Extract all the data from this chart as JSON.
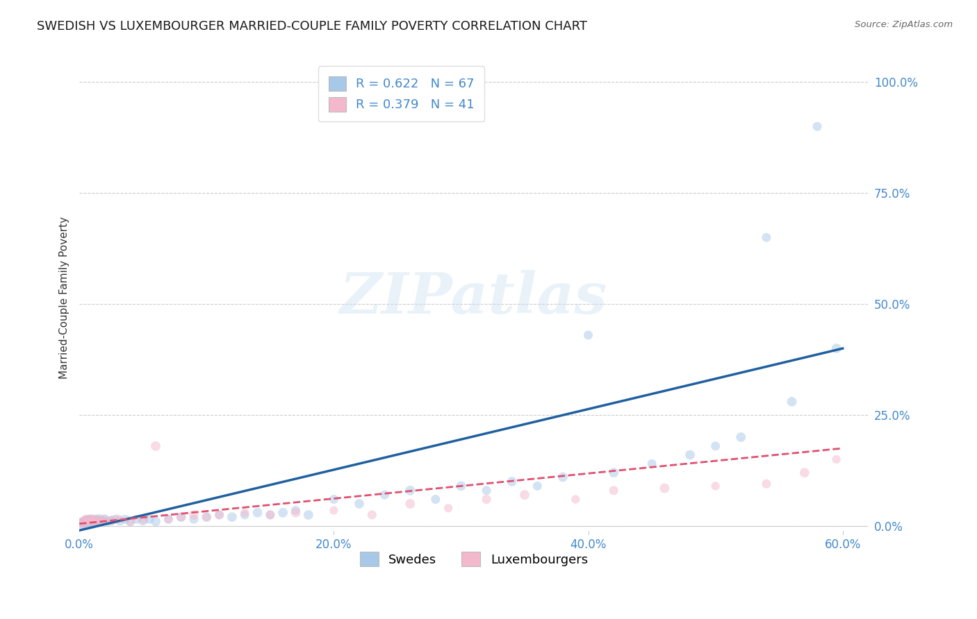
{
  "title": "SWEDISH VS LUXEMBOURGER MARRIED-COUPLE FAMILY POVERTY CORRELATION CHART",
  "source": "Source: ZipAtlas.com",
  "ylabel": "Married-Couple Family Poverty",
  "legend_label1": "Swedes",
  "legend_label2": "Luxembourgers",
  "r1": 0.622,
  "n1": 67,
  "r2": 0.379,
  "n2": 41,
  "color_blue": "#a8c8e8",
  "color_pink": "#f4b8cc",
  "color_blue_line": "#2060a0",
  "color_pink_line": "#e05070",
  "xlim": [
    0.0,
    0.62
  ],
  "ylim": [
    -0.02,
    1.05
  ],
  "x_ticks": [
    0.0,
    0.2,
    0.4,
    0.6
  ],
  "y_ticks": [
    0.0,
    0.25,
    0.5,
    0.75,
    1.0
  ],
  "tick_color": "#4488cc",
  "watermark_text": "ZIPatlas",
  "title_fontsize": 13,
  "tick_fontsize": 12,
  "legend_fontsize": 13,
  "swedes_x": [
    0.002,
    0.003,
    0.003,
    0.004,
    0.005,
    0.005,
    0.006,
    0.006,
    0.007,
    0.007,
    0.008,
    0.008,
    0.009,
    0.009,
    0.01,
    0.01,
    0.011,
    0.012,
    0.013,
    0.014,
    0.015,
    0.016,
    0.017,
    0.018,
    0.02,
    0.022,
    0.025,
    0.028,
    0.032,
    0.036,
    0.04,
    0.045,
    0.05,
    0.055,
    0.06,
    0.07,
    0.08,
    0.09,
    0.1,
    0.11,
    0.12,
    0.13,
    0.14,
    0.15,
    0.16,
    0.17,
    0.18,
    0.2,
    0.22,
    0.24,
    0.26,
    0.28,
    0.3,
    0.32,
    0.34,
    0.36,
    0.38,
    0.4,
    0.42,
    0.45,
    0.48,
    0.5,
    0.52,
    0.54,
    0.56,
    0.58,
    0.595
  ],
  "swedes_y": [
    0.005,
    0.008,
    0.01,
    0.006,
    0.012,
    0.008,
    0.01,
    0.015,
    0.008,
    0.012,
    0.01,
    0.015,
    0.008,
    0.012,
    0.01,
    0.015,
    0.012,
    0.01,
    0.015,
    0.012,
    0.008,
    0.015,
    0.01,
    0.012,
    0.015,
    0.01,
    0.012,
    0.015,
    0.012,
    0.015,
    0.01,
    0.015,
    0.012,
    0.015,
    0.01,
    0.015,
    0.02,
    0.015,
    0.02,
    0.025,
    0.02,
    0.025,
    0.03,
    0.025,
    0.03,
    0.035,
    0.025,
    0.06,
    0.05,
    0.07,
    0.08,
    0.06,
    0.09,
    0.08,
    0.1,
    0.09,
    0.11,
    0.43,
    0.12,
    0.14,
    0.16,
    0.18,
    0.2,
    0.65,
    0.28,
    0.9,
    0.4
  ],
  "swedes_size": [
    120,
    100,
    90,
    80,
    100,
    90,
    80,
    70,
    90,
    80,
    100,
    80,
    90,
    70,
    80,
    90,
    80,
    100,
    80,
    90,
    80,
    100,
    90,
    80,
    90,
    80,
    90,
    80,
    90,
    80,
    90,
    80,
    90,
    80,
    90,
    80,
    90,
    80,
    90,
    80,
    90,
    80,
    90,
    80,
    90,
    80,
    90,
    80,
    90,
    80,
    90,
    80,
    90,
    80,
    90,
    80,
    90,
    80,
    90,
    80,
    90,
    80,
    90,
    80,
    90,
    80,
    90
  ],
  "lux_x": [
    0.002,
    0.003,
    0.004,
    0.005,
    0.006,
    0.007,
    0.008,
    0.009,
    0.01,
    0.011,
    0.012,
    0.014,
    0.016,
    0.018,
    0.02,
    0.025,
    0.03,
    0.04,
    0.05,
    0.06,
    0.07,
    0.08,
    0.09,
    0.1,
    0.11,
    0.13,
    0.15,
    0.17,
    0.2,
    0.23,
    0.26,
    0.29,
    0.32,
    0.35,
    0.39,
    0.42,
    0.46,
    0.5,
    0.54,
    0.57,
    0.595
  ],
  "lux_y": [
    0.005,
    0.01,
    0.008,
    0.015,
    0.01,
    0.012,
    0.015,
    0.01,
    0.012,
    0.015,
    0.01,
    0.015,
    0.012,
    0.01,
    0.015,
    0.012,
    0.015,
    0.01,
    0.015,
    0.18,
    0.015,
    0.02,
    0.025,
    0.02,
    0.025,
    0.03,
    0.025,
    0.03,
    0.035,
    0.025,
    0.05,
    0.04,
    0.06,
    0.07,
    0.06,
    0.08,
    0.085,
    0.09,
    0.095,
    0.12,
    0.15
  ],
  "lux_size": [
    90,
    80,
    70,
    80,
    70,
    80,
    90,
    70,
    80,
    70,
    80,
    90,
    70,
    80,
    70,
    80,
    90,
    70,
    80,
    90,
    70,
    80,
    90,
    70,
    80,
    70,
    80,
    90,
    70,
    80,
    90,
    70,
    80,
    90,
    70,
    80,
    90,
    70,
    80,
    90,
    70
  ],
  "blue_line_x": [
    0.0,
    0.6
  ],
  "blue_line_y": [
    -0.01,
    0.4
  ],
  "pink_line_x": [
    0.0,
    0.6
  ],
  "pink_line_y": [
    0.005,
    0.175
  ]
}
